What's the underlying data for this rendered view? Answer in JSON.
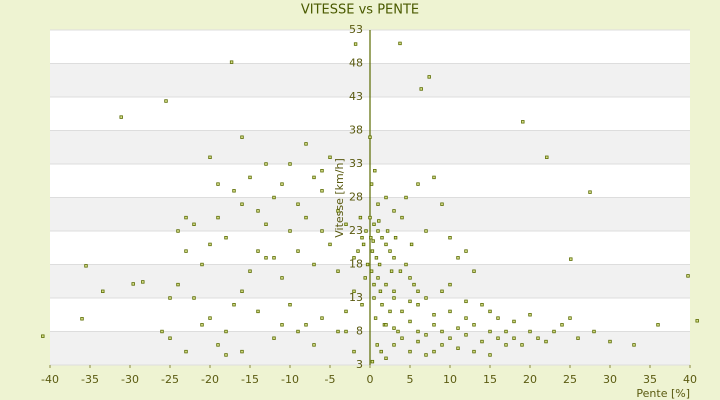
{
  "chart_data": {
    "type": "scatter",
    "title": "VITESSE vs PENTE",
    "xlabel": "Pente [%]",
    "ylabel": "Vitesse [km/h]",
    "xlim": [
      -40,
      40
    ],
    "ylim": [
      3,
      53
    ],
    "xticks": [
      -40,
      -35,
      -30,
      -25,
      -20,
      -15,
      -10,
      -5,
      0,
      5,
      10,
      15,
      20,
      25,
      30,
      35,
      40
    ],
    "yticks": [
      3,
      8,
      13,
      18,
      23,
      28,
      33,
      38,
      43,
      48,
      53
    ],
    "grid": true,
    "color": "#5a6b00",
    "x": [
      -31.1,
      -25.5,
      -17.3,
      -1.8,
      3.75,
      7.4,
      6.4,
      19.1,
      22.1,
      27.5,
      25.1,
      39.75,
      40.9,
      -40.9,
      -35.5,
      -33.4,
      -36,
      -29.6,
      -28.4,
      -24,
      -23,
      -22,
      -21,
      -20,
      -19,
      -18,
      -17,
      -16,
      -15,
      -14,
      -13,
      -12,
      -11,
      -10,
      -9,
      -8,
      -7,
      -6,
      -5,
      -4,
      -3,
      -22,
      -20,
      -18,
      -16,
      -14,
      -12,
      -10,
      -8,
      -6,
      -4,
      -3,
      -24,
      -25,
      -23,
      -21,
      -19,
      -17,
      -15,
      -13,
      -11,
      -9,
      -7,
      -5,
      -4,
      -2,
      -2,
      -1,
      -1,
      -16,
      -20,
      -13,
      -8,
      -6,
      -25,
      -18,
      -16,
      -2,
      -3,
      -7,
      -9,
      -11,
      -26,
      -12,
      -14,
      -10,
      -6,
      -23,
      -19,
      0,
      0.5,
      1,
      1.5,
      2,
      0.3,
      0.8,
      1.2,
      2.5,
      3,
      0.2,
      1,
      2,
      3,
      0.5,
      1.5,
      2.5,
      0.7,
      1.8,
      3.5,
      0.1,
      0.4,
      1.1,
      2.2,
      3.2,
      3.8,
      4.5,
      5,
      5.5,
      6,
      0.2,
      0.6,
      1,
      2,
      3,
      4,
      0,
      0.5,
      1.3,
      2.7,
      -0.5,
      -1.2,
      -0.8,
      -0.3,
      -1.5,
      -0.6,
      0.9,
      1.4,
      0.3,
      2,
      6,
      8,
      9,
      10,
      12,
      7,
      4.5,
      5.2,
      11,
      13,
      2,
      3,
      4,
      5,
      6,
      7,
      8,
      9,
      10,
      11,
      12,
      13,
      14,
      15,
      16,
      17,
      18,
      19,
      20,
      21,
      22,
      23,
      24,
      26,
      28,
      30,
      33,
      36,
      4,
      6,
      8,
      10,
      12,
      14,
      16,
      18,
      3,
      5,
      7,
      9,
      11,
      13,
      15,
      17,
      25,
      20,
      7,
      9,
      5,
      3,
      10,
      12,
      15,
      8,
      6
    ],
    "values": [
      40,
      42.4,
      48.2,
      50.9,
      51,
      46,
      44.2,
      39.3,
      34,
      28.8,
      18.8,
      16.3,
      9.6,
      7.3,
      17.8,
      14,
      9.9,
      15.1,
      15.4,
      23,
      20,
      24,
      18,
      21,
      25,
      22,
      29,
      27,
      31,
      26,
      24,
      28,
      30,
      33,
      27,
      25,
      31,
      29,
      34,
      26,
      24,
      13,
      10,
      8,
      14,
      11,
      7,
      12,
      9,
      10,
      8,
      11,
      15,
      7,
      5,
      9,
      6,
      12,
      17,
      19,
      16,
      20,
      18,
      21,
      17,
      19,
      14,
      12,
      22,
      37,
      34,
      33,
      36,
      32,
      13,
      4.5,
      5,
      5,
      8,
      6,
      8,
      9,
      8,
      19,
      20,
      23,
      23,
      25,
      30,
      25,
      24,
      23,
      22,
      21,
      20,
      19,
      18,
      20,
      19,
      17,
      16,
      15,
      14,
      13,
      12,
      11,
      10,
      9,
      8,
      22,
      21.5,
      24.5,
      23,
      22,
      17,
      18,
      16,
      15,
      14,
      30,
      32,
      27,
      28,
      26,
      25,
      37,
      15,
      14,
      17,
      23,
      25,
      21,
      18,
      20,
      16,
      6,
      5,
      3.5,
      4,
      30,
      31,
      27,
      22,
      20,
      23,
      28,
      21,
      19,
      17,
      9,
      8.5,
      7,
      9.5,
      8,
      7.5,
      9,
      8,
      7,
      8.5,
      7.5,
      9,
      6.5,
      8,
      7,
      8,
      7,
      6,
      8,
      7,
      6.5,
      8,
      9,
      7,
      8,
      6.5,
      6,
      9,
      11,
      12,
      10.5,
      11,
      10,
      12,
      10,
      9.5,
      6,
      5,
      4.5,
      6,
      5.5,
      5,
      4.5,
      6,
      10,
      10.5,
      13,
      14,
      12.5,
      13,
      15,
      12.5,
      11,
      5,
      6.5
    ]
  }
}
